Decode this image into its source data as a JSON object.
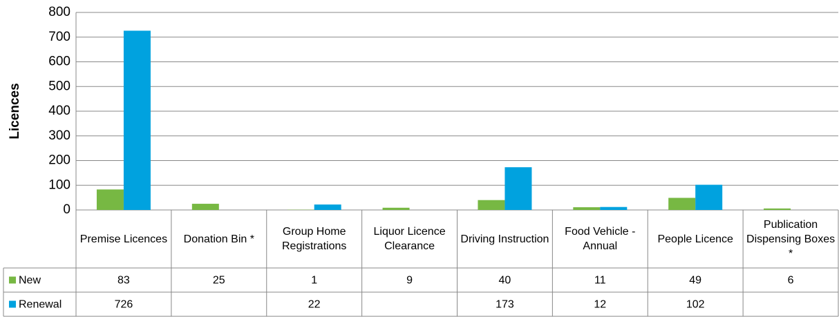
{
  "chart_data": {
    "type": "bar",
    "ylabel": "Licences",
    "categories": [
      "Premise Licences",
      "Donation Bin *",
      "Group Home Registrations",
      "Liquor Licence Clearance",
      "Driving Instruction",
      "Food Vehicle - Annual",
      "People Licence",
      "Publication Dispensing Boxes *"
    ],
    "series": [
      {
        "name": "New",
        "color": "#77b843",
        "values": [
          83,
          25,
          1,
          9,
          40,
          11,
          49,
          6
        ]
      },
      {
        "name": "Renewal",
        "color": "#00a2df",
        "values": [
          726,
          null,
          22,
          null,
          173,
          12,
          102,
          null
        ]
      }
    ],
    "ylim": [
      0,
      800
    ],
    "yticks": [
      0,
      100,
      200,
      300,
      400,
      500,
      600,
      700,
      800
    ],
    "grid": true
  }
}
